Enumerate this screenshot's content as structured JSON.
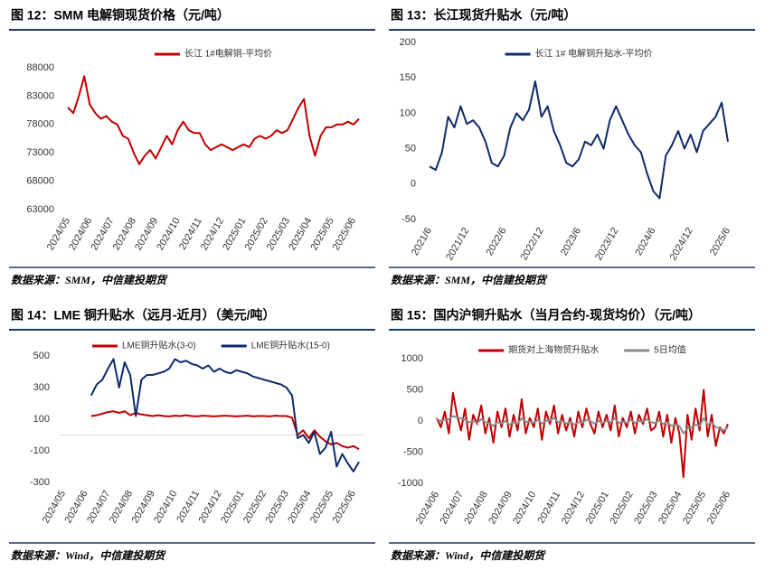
{
  "chart_data": [
    {
      "type": "line",
      "title": "图 12：SMM 电解铜现货价格（元/吨）",
      "source": "数据来源：SMM，中信建投期货",
      "categories": [
        "2024/05",
        null,
        null,
        null,
        "2024/06",
        null,
        null,
        null,
        "2024/07",
        null,
        null,
        null,
        "2024/08",
        null,
        null,
        null,
        "2024/09",
        null,
        null,
        null,
        "2024/10",
        null,
        null,
        null,
        "2024/11",
        null,
        null,
        null,
        "2024/12",
        null,
        null,
        null,
        "2025/01",
        null,
        null,
        null,
        "2025/02",
        null,
        null,
        null,
        "2025/03",
        null,
        null,
        null,
        "2025/04",
        null,
        null,
        null,
        "2025/05",
        null,
        null,
        null,
        "2025/06",
        null
      ],
      "series": [
        {
          "name": "长江 1#电解铜-平均价",
          "color": "#c00000",
          "values": [
            81000,
            80000,
            83000,
            86500,
            81500,
            80000,
            79000,
            79500,
            78500,
            78000,
            76000,
            75500,
            73000,
            71000,
            72500,
            73500,
            72000,
            74000,
            76000,
            74500,
            77000,
            78500,
            77000,
            76500,
            76500,
            74500,
            73500,
            74000,
            74500,
            74000,
            73500,
            74000,
            74500,
            74000,
            75500,
            76000,
            75500,
            76000,
            77000,
            76500,
            77000,
            79000,
            81000,
            82500,
            76000,
            72500,
            76000,
            77500,
            77500,
            78000,
            78000,
            78500,
            78000,
            79000
          ]
        }
      ],
      "ylim": [
        63000,
        88000
      ],
      "yticks": [
        63000,
        68000,
        73000,
        78000,
        83000,
        88000
      ]
    },
    {
      "type": "line",
      "title": "图 13：长江现货升贴水（元/吨）",
      "source": "数据来源：SMM，中信建投期货",
      "categories": [
        "2021/6",
        null,
        null,
        null,
        null,
        null,
        "2021/12",
        null,
        null,
        null,
        null,
        null,
        "2022/6",
        null,
        null,
        null,
        null,
        null,
        "2022/12",
        null,
        null,
        null,
        null,
        null,
        "2023/6",
        null,
        null,
        null,
        null,
        null,
        "2023/12",
        null,
        null,
        null,
        null,
        null,
        "2024/6",
        null,
        null,
        null,
        null,
        null,
        "2024/12",
        null,
        null,
        null,
        null,
        null,
        "2025/6"
      ],
      "series": [
        {
          "name": "长江 1# 电解铜升贴水-平均价",
          "color": "#0d2a6b",
          "values": [
            25,
            20,
            45,
            95,
            80,
            110,
            85,
            90,
            80,
            60,
            30,
            25,
            40,
            80,
            100,
            90,
            105,
            145,
            95,
            110,
            75,
            55,
            30,
            25,
            35,
            60,
            55,
            70,
            50,
            90,
            110,
            90,
            70,
            55,
            45,
            15,
            -10,
            -20,
            40,
            55,
            75,
            50,
            70,
            45,
            75,
            85,
            95,
            115,
            60
          ]
        }
      ],
      "ylim": [
        -50,
        200
      ],
      "yticks": [
        -50,
        0,
        50,
        100,
        150,
        200
      ]
    },
    {
      "type": "line",
      "title": "图 14：LME 铜升贴水（远月-近月）（美元/吨）",
      "source": "数据来源：Wind，中信建投期货",
      "zero_line": true,
      "categories": [
        "2024/05",
        null,
        null,
        null,
        "2024/06",
        null,
        null,
        null,
        "2024/07",
        null,
        null,
        null,
        "2024/08",
        null,
        null,
        null,
        "2024/09",
        null,
        null,
        null,
        "2024/10",
        null,
        null,
        null,
        "2024/11",
        null,
        null,
        null,
        "2024/12",
        null,
        null,
        null,
        "2025/01",
        null,
        null,
        null,
        "2025/02",
        null,
        null,
        null,
        "2025/03",
        null,
        null,
        null,
        "2025/04",
        null,
        null,
        null,
        "2025/05",
        null,
        null,
        null,
        "2025/06",
        null
      ],
      "series": [
        {
          "name": "LME铜升贴水(3-0)",
          "color": "#c00000",
          "values": [
            null,
            null,
            null,
            null,
            null,
            120,
            125,
            135,
            145,
            150,
            140,
            150,
            125,
            140,
            130,
            125,
            120,
            125,
            120,
            118,
            122,
            120,
            125,
            120,
            118,
            122,
            120,
            118,
            120,
            122,
            120,
            118,
            120,
            122,
            118,
            120,
            120,
            118,
            122,
            120,
            120,
            110,
            0,
            30,
            -20,
            30,
            -10,
            -40,
            -60,
            -50,
            -70,
            -80,
            -70,
            -90
          ]
        },
        {
          "name": "LME铜升贴水(15-0)",
          "color": "#0d2a6b",
          "values": [
            null,
            null,
            null,
            null,
            null,
            250,
            320,
            350,
            420,
            480,
            300,
            460,
            380,
            120,
            350,
            380,
            380,
            390,
            400,
            420,
            480,
            460,
            470,
            450,
            440,
            420,
            440,
            400,
            420,
            400,
            390,
            410,
            400,
            390,
            370,
            360,
            350,
            340,
            330,
            320,
            300,
            250,
            -20,
            0,
            -50,
            20,
            -120,
            -80,
            20,
            -200,
            -120,
            -180,
            -230,
            -170
          ]
        }
      ],
      "ylim": [
        -300,
        500
      ],
      "yticks": [
        -300,
        -100,
        100,
        300,
        500
      ]
    },
    {
      "type": "line",
      "title": "图 15：国内沪铜升贴水（当月合约-现货均价）（元/吨）",
      "source": "数据来源：Wind，中信建投期货",
      "categories": [
        "2024/06",
        null,
        null,
        null,
        null,
        null,
        "2024/07",
        null,
        null,
        null,
        null,
        null,
        "2024/08",
        null,
        null,
        null,
        null,
        null,
        "2024/09",
        null,
        null,
        null,
        null,
        null,
        "2024/10",
        null,
        null,
        null,
        null,
        null,
        "2024/11",
        null,
        null,
        null,
        null,
        null,
        "2024/12",
        null,
        null,
        null,
        null,
        null,
        "2025/01",
        null,
        null,
        null,
        null,
        null,
        "2025/02",
        null,
        null,
        null,
        null,
        null,
        "2025/03",
        null,
        null,
        null,
        null,
        null,
        "2025/04",
        null,
        null,
        null,
        null,
        null,
        "2025/05",
        null,
        null,
        null,
        null,
        null,
        "2025/06"
      ],
      "series": [
        {
          "name": "期货对上海物贸升贴水",
          "color": "#c00000",
          "values": [
            50,
            -100,
            150,
            -200,
            450,
            100,
            -150,
            200,
            -300,
            100,
            -50,
            250,
            -200,
            50,
            -350,
            150,
            -100,
            200,
            -250,
            100,
            -150,
            350,
            -200,
            50,
            -100,
            200,
            -300,
            150,
            -50,
            250,
            -200,
            100,
            -150,
            50,
            -250,
            150,
            -100,
            200,
            -50,
            -200,
            150,
            -100,
            100,
            -150,
            250,
            -250,
            50,
            -100,
            150,
            -200,
            100,
            -50,
            200,
            -150,
            -100,
            150,
            -250,
            100,
            -350,
            50,
            -200,
            -900,
            100,
            -300,
            200,
            -150,
            500,
            -250,
            100,
            -400,
            -100,
            -200,
            -50
          ]
        },
        {
          "name": "5日均值",
          "color": "#8c8c8c",
          "values": [
            30,
            0,
            20,
            30,
            80,
            60,
            40,
            20,
            -20,
            0,
            -30,
            30,
            -20,
            -30,
            -80,
            -20,
            -40,
            0,
            -60,
            -20,
            -40,
            40,
            -10,
            -10,
            -30,
            20,
            -40,
            0,
            10,
            50,
            -20,
            0,
            -40,
            -10,
            -60,
            -20,
            -30,
            20,
            0,
            -40,
            0,
            -30,
            0,
            -20,
            40,
            -30,
            -10,
            -30,
            20,
            -30,
            0,
            -10,
            30,
            -20,
            -30,
            10,
            -50,
            -20,
            -80,
            -60,
            -80,
            -200,
            -120,
            -100,
            -60,
            -80,
            50,
            -60,
            -20,
            -100,
            -120,
            -150,
            -100
          ]
        }
      ],
      "ylim": [
        -1000,
        1000
      ],
      "yticks": [
        -1000,
        -500,
        0,
        500,
        1000
      ]
    }
  ]
}
